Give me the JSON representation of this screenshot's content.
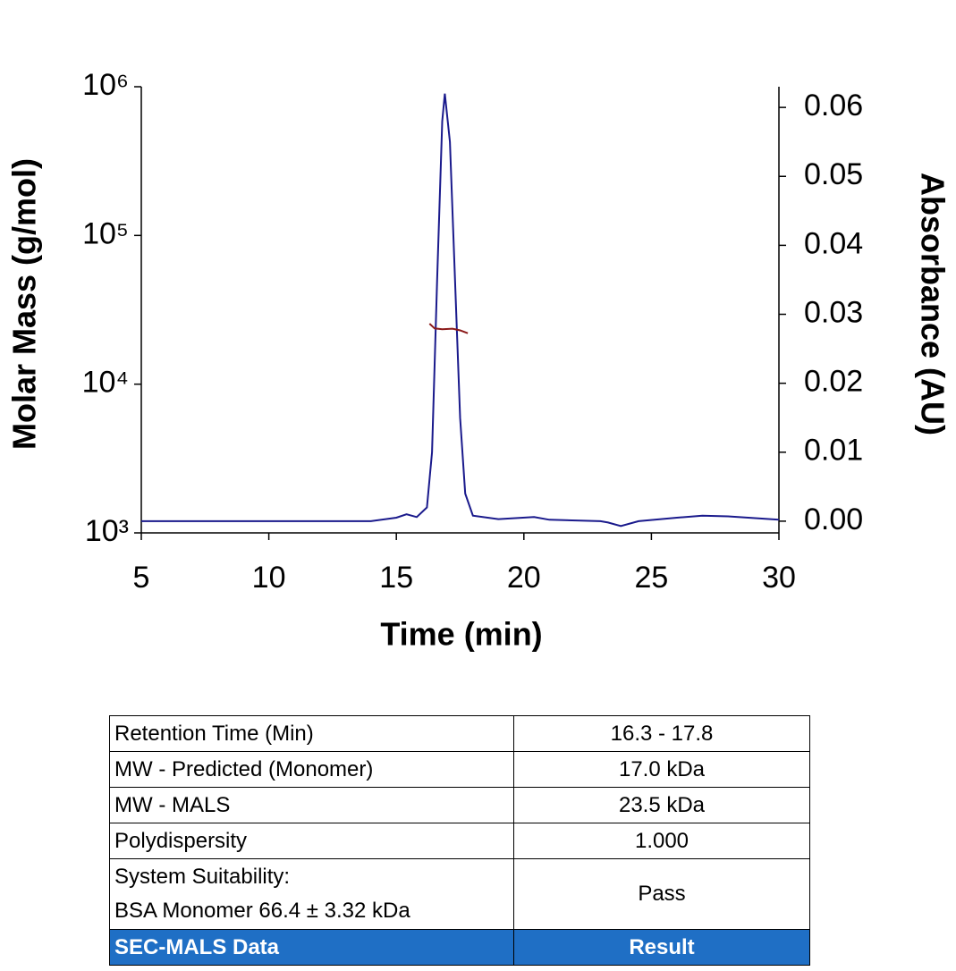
{
  "chart_data": {
    "type": "line",
    "log_y": true,
    "xlabel": "Time (min)",
    "ylabel": "Molar Mass (g/mol)",
    "y2label": "Absorbance (AU)",
    "xlim": [
      5,
      30
    ],
    "xticks": [
      5,
      10,
      15,
      20,
      25,
      30
    ],
    "ylim": [
      1000,
      1000000
    ],
    "yticks": [
      {
        "value": 1000,
        "label": "10³"
      },
      {
        "value": 10000,
        "label": "10⁴"
      },
      {
        "value": 100000,
        "label": "10⁵"
      },
      {
        "value": 1000000,
        "label": "10⁶"
      }
    ],
    "y2lim": [
      -0.0017,
      0.063
    ],
    "y2ticks": [
      {
        "value": 0,
        "label": "0.00"
      },
      {
        "value": 0.01,
        "label": "0.01"
      },
      {
        "value": 0.02,
        "label": "0.02"
      },
      {
        "value": 0.03,
        "label": "0.03"
      },
      {
        "value": 0.04,
        "label": "0.04"
      },
      {
        "value": 0.05,
        "label": "0.05"
      },
      {
        "value": 0.06,
        "label": "0.06"
      }
    ],
    "series": [
      {
        "color": "#1a1a8c",
        "axis": "y2",
        "x": [
          5,
          14,
          15,
          15.4,
          15.8,
          16.2,
          16.4,
          16.6,
          16.8,
          16.9,
          17.1,
          17.3,
          17.5,
          17.7,
          18.0,
          19,
          20.4,
          21,
          23,
          23.3,
          23.8,
          24.5,
          26,
          27,
          28,
          30
        ],
        "values": [
          0,
          0,
          0.0005,
          0.001,
          0.0006,
          0.002,
          0.01,
          0.035,
          0.058,
          0.062,
          0.055,
          0.035,
          0.015,
          0.004,
          0.0008,
          0.0003,
          0.0006,
          0.0002,
          0,
          -0.0002,
          -0.0007,
          0,
          0.0005,
          0.0008,
          0.0007,
          0.0002
        ]
      },
      {
        "color": "#8b1a1a",
        "x": [
          16.3,
          16.5,
          16.8,
          17.2,
          17.5,
          17.8
        ],
        "values": [
          25500,
          23700,
          23400,
          23600,
          23000,
          22000
        ]
      }
    ]
  },
  "table": {
    "header": [
      "SEC-MALS Data",
      "Result"
    ],
    "rows": [
      [
        "Retention Time (Min)",
        "16.3 - 17.8"
      ],
      [
        "MW - Predicted (Monomer)",
        "17.0 kDa"
      ],
      [
        "MW - MALS",
        "23.5 kDa"
      ],
      [
        "Polydispersity",
        "1.000"
      ]
    ],
    "last_row": {
      "label_lines": [
        "System Suitability:",
        "BSA Monomer 66.4 ± 3.32 kDa"
      ],
      "result": "Pass"
    }
  }
}
